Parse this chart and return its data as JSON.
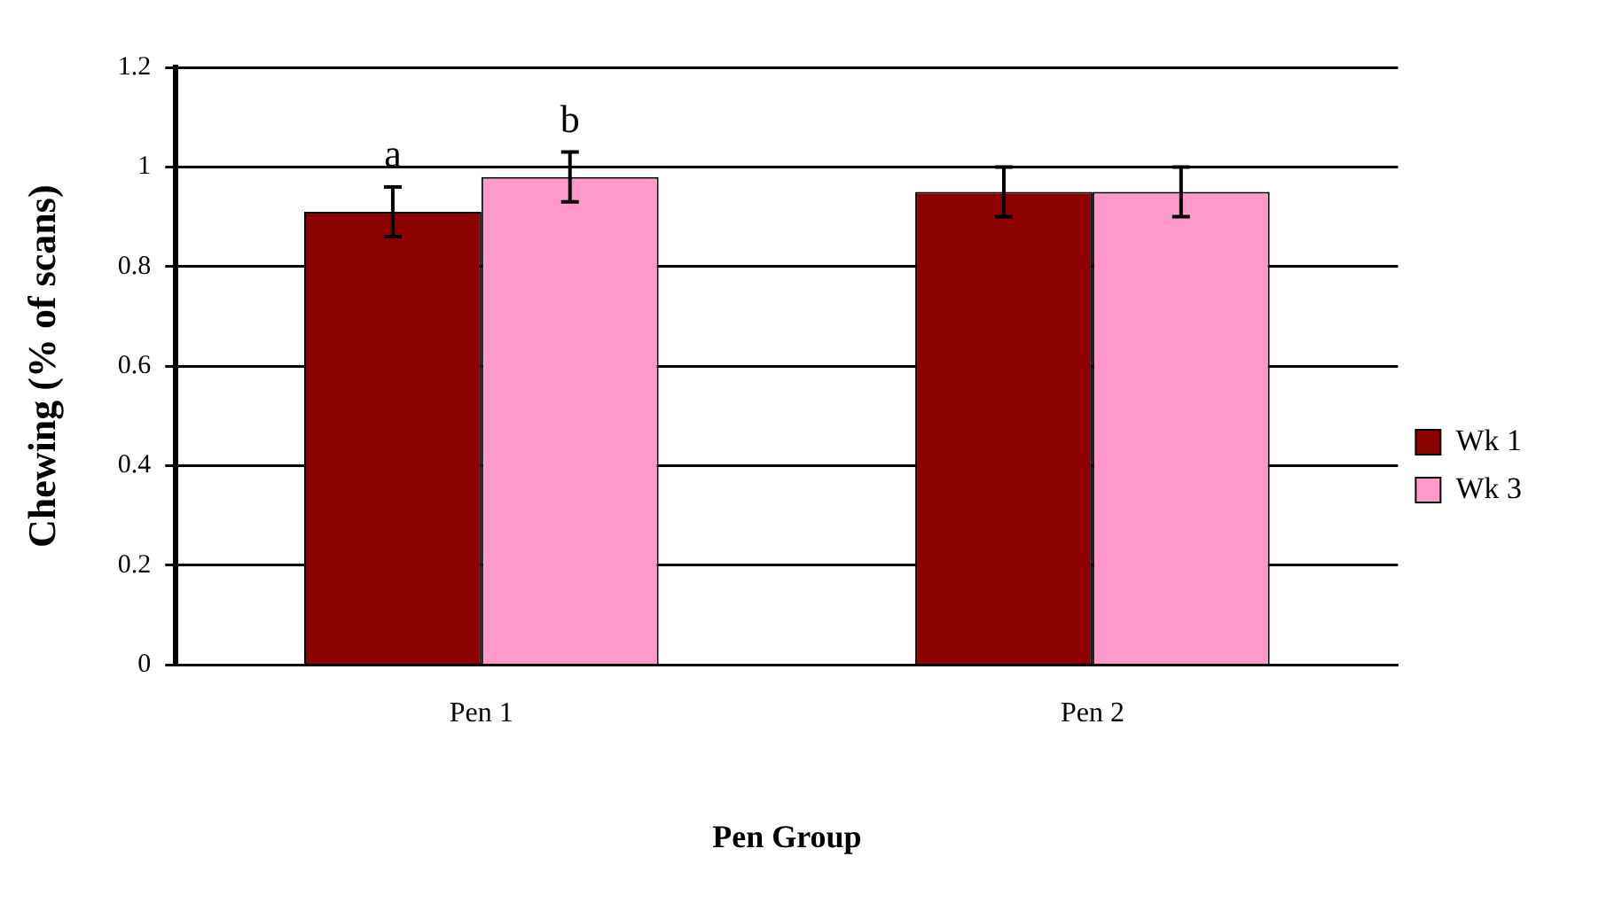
{
  "chart_data": {
    "type": "bar",
    "xlabel": "Pen Group",
    "ylabel": "Chewing (% of scans)",
    "categories": [
      "Pen 1",
      "Pen 2"
    ],
    "series": [
      {
        "name": "Wk 1",
        "color": "#8b0000",
        "values": [
          0.91,
          0.95
        ],
        "errors": [
          0.05,
          0.05
        ]
      },
      {
        "name": "Wk 3",
        "color": "#ff99cc",
        "values": [
          0.98,
          0.95
        ],
        "errors": [
          0.05,
          0.05
        ]
      }
    ],
    "annotations": [
      {
        "text": "a",
        "x": "Pen 1",
        "y": 0.91
      },
      {
        "text": "b",
        "x": "Pen 1",
        "y": 0.98
      }
    ],
    "ylim": [
      0,
      1.2
    ],
    "yticks": [
      0,
      0.2,
      0.4,
      0.6,
      0.8,
      1,
      1.2
    ],
    "grid": "y",
    "legend": "right"
  }
}
